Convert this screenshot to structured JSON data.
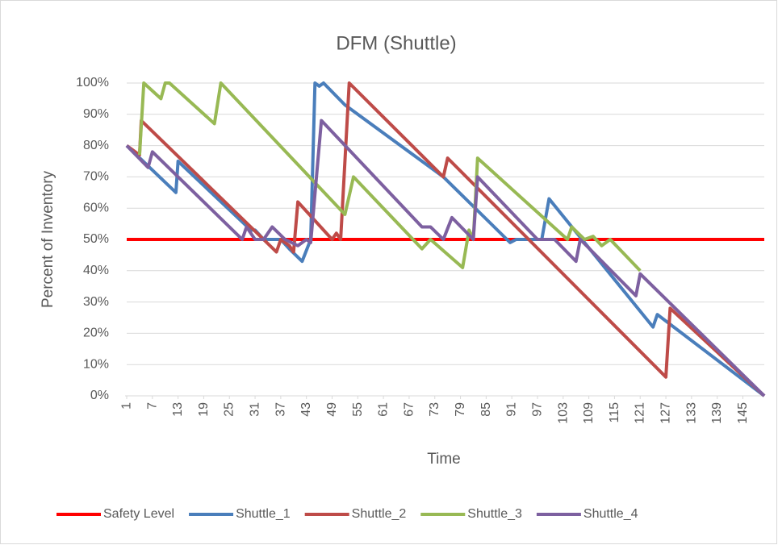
{
  "chart_data": {
    "type": "line",
    "title": "DFM (Shuttle)",
    "x_label": "Time",
    "y_label": "Percent of Inventory",
    "xlim": [
      1,
      150
    ],
    "xticks": [
      1,
      7,
      13,
      19,
      25,
      31,
      37,
      43,
      49,
      55,
      61,
      67,
      73,
      79,
      85,
      91,
      97,
      103,
      109,
      115,
      121,
      127,
      133,
      139,
      145
    ],
    "ylim": [
      0,
      100
    ],
    "yticks": [
      {
        "value": 0,
        "label": "0%"
      },
      {
        "value": 10,
        "label": "10%"
      },
      {
        "value": 20,
        "label": "20%"
      },
      {
        "value": 30,
        "label": "30%"
      },
      {
        "value": 40,
        "label": "40%"
      },
      {
        "value": 50,
        "label": "50%"
      },
      {
        "value": 60,
        "label": "60%"
      },
      {
        "value": 70,
        "label": "70%"
      },
      {
        "value": 80,
        "label": "80%"
      },
      {
        "value": 90,
        "label": "90%"
      },
      {
        "value": 100,
        "label": "100%"
      }
    ],
    "grid": true,
    "legend": "bottom",
    "series": [
      {
        "name": "Safety Level",
        "color": "#ff0000",
        "x": [
          1,
          150
        ],
        "values": [
          50,
          50
        ]
      },
      {
        "name": "Shuttle_1",
        "color": "#4a7ebb",
        "x": [
          1,
          12.5,
          13,
          30,
          31,
          33,
          35,
          37,
          39,
          42,
          44,
          45,
          46,
          47,
          52,
          75,
          90.6,
          92,
          98,
          99.7,
          124,
          125,
          150
        ],
        "values": [
          80,
          65,
          75,
          53,
          53,
          50,
          50,
          50,
          47,
          43,
          50,
          100,
          99,
          100,
          93,
          70,
          49,
          50,
          50,
          63,
          22,
          26,
          0
        ]
      },
      {
        "name": "Shuttle_2",
        "color": "#be4b48",
        "x": [
          1,
          4,
          4.4,
          36,
          37,
          39,
          40,
          41,
          49,
          50,
          51,
          53,
          75,
          76,
          127,
          128,
          150
        ],
        "values": [
          80,
          77,
          88,
          46,
          50,
          48,
          46,
          62,
          50,
          52,
          50,
          100,
          70,
          76,
          6,
          28,
          0
        ]
      },
      {
        "name": "Shuttle_3",
        "color": "#98b954",
        "x": [
          4,
          5,
          9,
          10,
          11,
          21.5,
          23,
          52,
          54,
          70,
          72,
          79.5,
          81,
          82,
          83,
          104,
          105,
          108,
          110,
          112,
          114,
          121
        ],
        "values": [
          77,
          100,
          95,
          100,
          100,
          87,
          100,
          58,
          70,
          47,
          50,
          41,
          53,
          50,
          76,
          50,
          54,
          50,
          51,
          48,
          50,
          40
        ]
      },
      {
        "name": "Shuttle_4",
        "color": "#7d60a0",
        "x": [
          1,
          6,
          7,
          28,
          29,
          31,
          33,
          35,
          38,
          41,
          43,
          44,
          46.5,
          70,
          72,
          75,
          77,
          82,
          83,
          97,
          101,
          106,
          107,
          120,
          121,
          150
        ],
        "values": [
          80,
          73,
          78,
          50,
          54,
          50,
          50,
          54,
          50,
          48,
          50,
          49,
          88,
          54,
          54,
          50,
          57,
          50,
          70,
          50,
          50,
          43,
          50,
          32,
          39,
          0
        ]
      }
    ]
  }
}
